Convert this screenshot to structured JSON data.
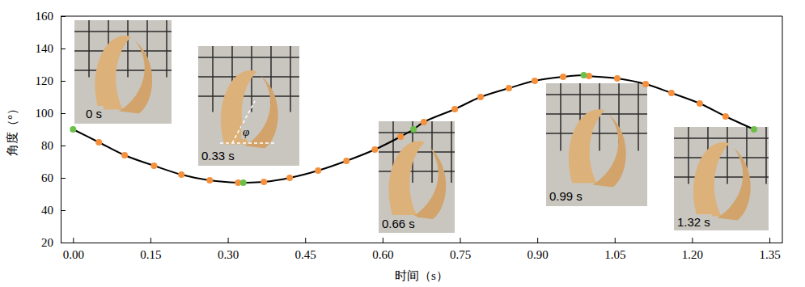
{
  "chart_data": {
    "type": "line",
    "x_label": "时间（s）",
    "y_label": "角度（°）",
    "xlim": [
      -0.024,
      1.375
    ],
    "ylim": [
      20,
      160
    ],
    "xticks": [
      {
        "value": 0,
        "label": "0.00"
      },
      {
        "value": 0.15,
        "label": "0.15"
      },
      {
        "value": 0.3,
        "label": "0.30"
      },
      {
        "value": 0.45,
        "label": "0.45"
      },
      {
        "value": 0.6,
        "label": "0.60"
      },
      {
        "value": 0.75,
        "label": "0.75"
      },
      {
        "value": 0.9,
        "label": "0.90"
      },
      {
        "value": 1.05,
        "label": "1.05"
      },
      {
        "value": 1.2,
        "label": "1.20"
      },
      {
        "value": 1.35,
        "label": "1.35"
      }
    ],
    "yticks": [
      20,
      40,
      60,
      80,
      100,
      120,
      140,
      160
    ],
    "series": [
      {
        "type": "line",
        "color": "#000000",
        "marker": "none",
        "x": [
          0,
          0.05,
          0.1,
          0.157,
          0.21,
          0.265,
          0.32,
          0.33,
          0.37,
          0.42,
          0.475,
          0.53,
          0.585,
          0.635,
          0.66,
          0.68,
          0.74,
          0.79,
          0.845,
          0.895,
          0.95,
          0.99,
          1.0,
          1.055,
          1.11,
          1.16,
          1.215,
          1.265,
          1.32
        ],
        "values": [
          90,
          82,
          74,
          67.5,
          62,
          58.5,
          57,
          57,
          57.5,
          60,
          64.5,
          70.5,
          77.5,
          85.5,
          90,
          94.5,
          102.5,
          110,
          115.5,
          120,
          122.5,
          123.5,
          123,
          121.5,
          118,
          112.5,
          106,
          98,
          90
        ]
      },
      {
        "type": "scatter",
        "color": "#f5903d",
        "marker": "circle",
        "x": [
          0.05,
          0.1,
          0.157,
          0.21,
          0.265,
          0.32,
          0.37,
          0.42,
          0.475,
          0.53,
          0.585,
          0.635,
          0.68,
          0.74,
          0.79,
          0.845,
          0.895,
          0.95,
          1.0,
          1.055,
          1.11,
          1.16,
          1.215,
          1.265
        ],
        "values": [
          82,
          74,
          67.5,
          62,
          58.5,
          57,
          57.5,
          60,
          64.5,
          70.5,
          77.5,
          85.5,
          94.5,
          102.5,
          110,
          115.5,
          120,
          122.5,
          123,
          121.5,
          118,
          112.5,
          106,
          98
        ]
      },
      {
        "type": "scatter",
        "color": "#6cc04a",
        "marker": "circle",
        "x": [
          0,
          0.33,
          0.66,
          0.99,
          1.32
        ],
        "values": [
          90,
          57,
          90,
          123.5,
          90
        ]
      }
    ],
    "annotations": [
      "0 s",
      "0.33 s",
      "0.66 s",
      "0.99 s",
      "1.32 s",
      "φ"
    ]
  }
}
